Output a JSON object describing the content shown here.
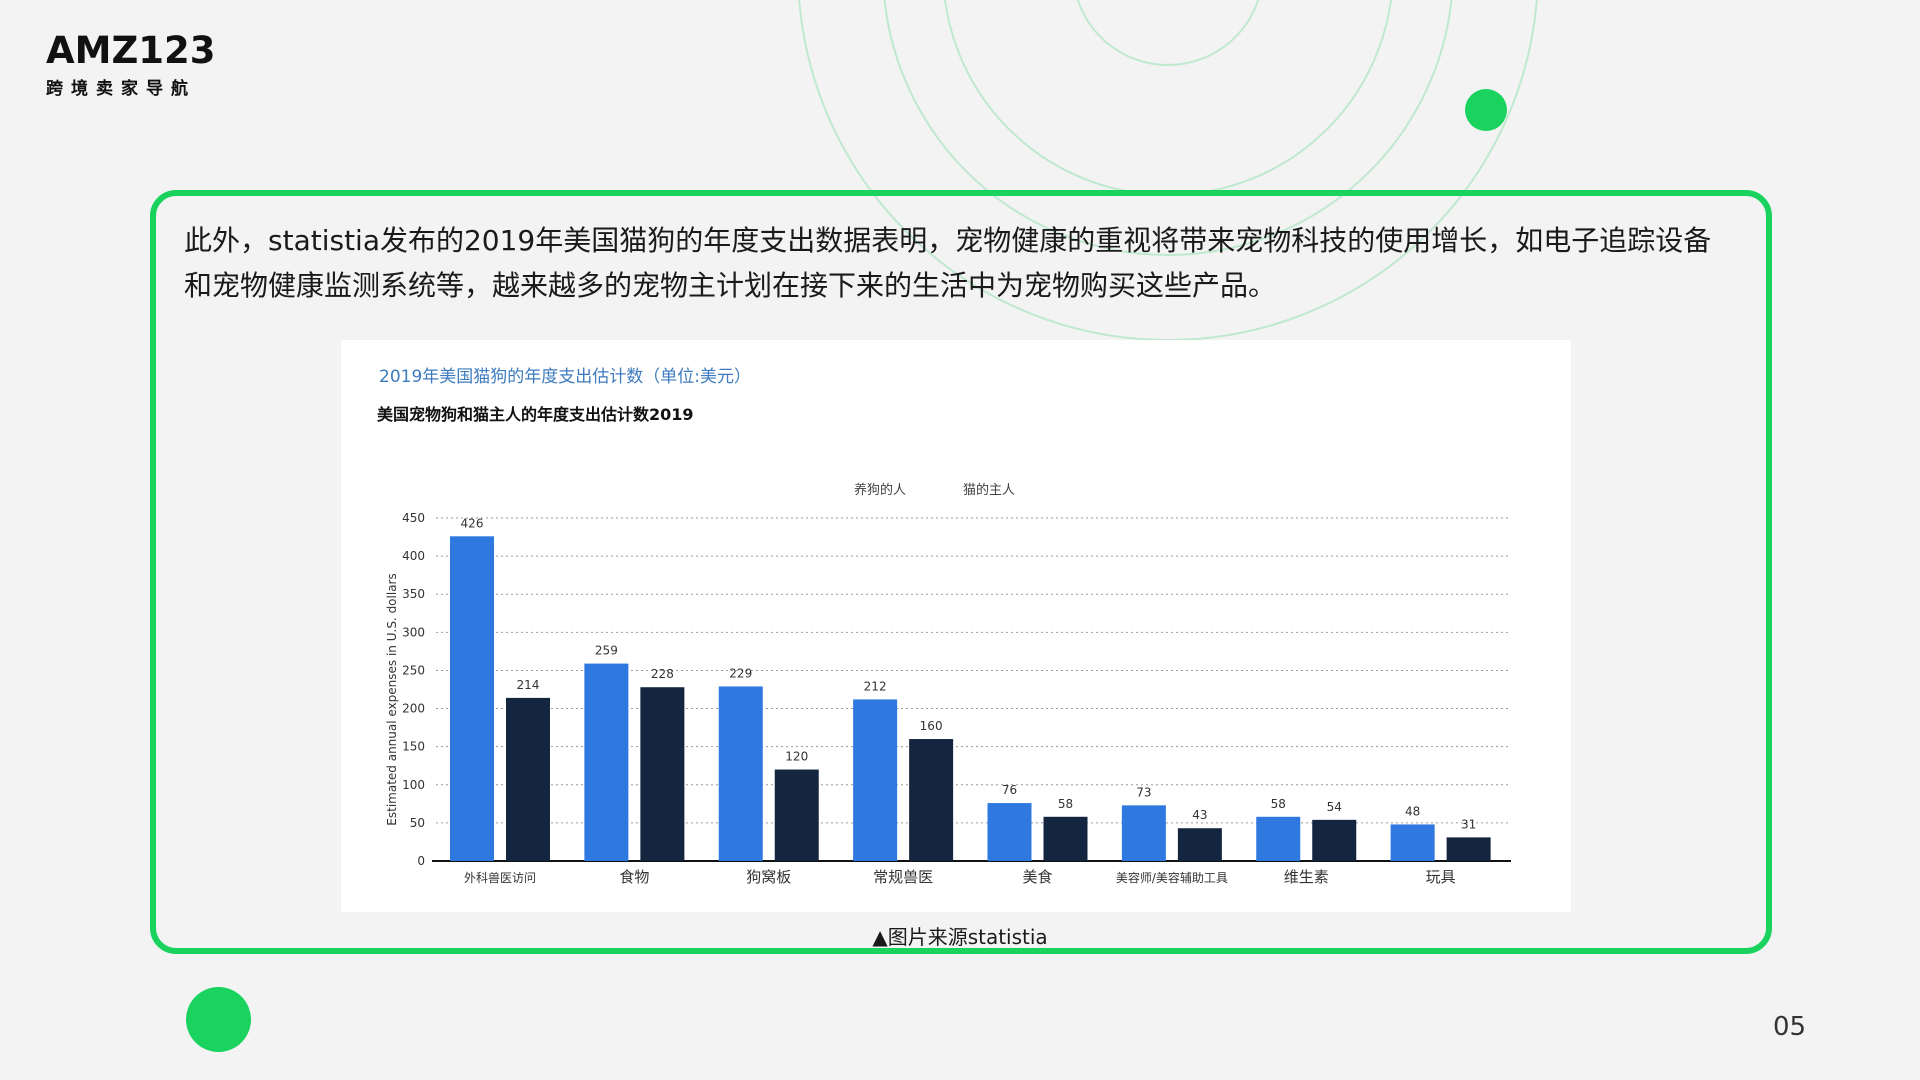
{
  "brand": {
    "logo_main": "AMZ123",
    "logo_sub": "跨境卖家导航"
  },
  "intro_text": "此外，statistia发布的2019年美国猫狗的年度支出数据表明，宠物健康的重视将带来宠物科技的使用增长，如电子追踪设备和宠物健康监测系统等，越来越多的宠物主计划在接下来的生活中为宠物购买这些产品。",
  "caption": "▲图片来源statistia",
  "page_number": "05",
  "colors": {
    "accent": "#19d35e",
    "dog_series": "#2f78e0",
    "cat_series": "#14263f",
    "chart_title": "#3d7bbf"
  },
  "chart_data": {
    "type": "bar",
    "title": "2019年美国猫狗的年度支出估计数（单位:美元）",
    "subtitle": "美国宠物狗和猫主人的年度支出估计数2019",
    "ylabel": "Estimated annual expenses in U.S. dollars",
    "xlabel": "",
    "ylim": [
      0,
      450
    ],
    "yticks": [
      0,
      50,
      100,
      150,
      200,
      250,
      300,
      350,
      400,
      450
    ],
    "grid": true,
    "legend_position": "top-center",
    "categories": [
      "外科兽医访问",
      "食物",
      "狗窝板",
      "常规兽医",
      "美食",
      "美容师/美容辅助工具",
      "维生素",
      "玩具"
    ],
    "series": [
      {
        "name": "养狗的人",
        "values": [
          426,
          259,
          229,
          212,
          76,
          73,
          58,
          48
        ]
      },
      {
        "name": "猫的主人",
        "values": [
          214,
          228,
          120,
          160,
          58,
          43,
          54,
          31
        ]
      }
    ]
  }
}
